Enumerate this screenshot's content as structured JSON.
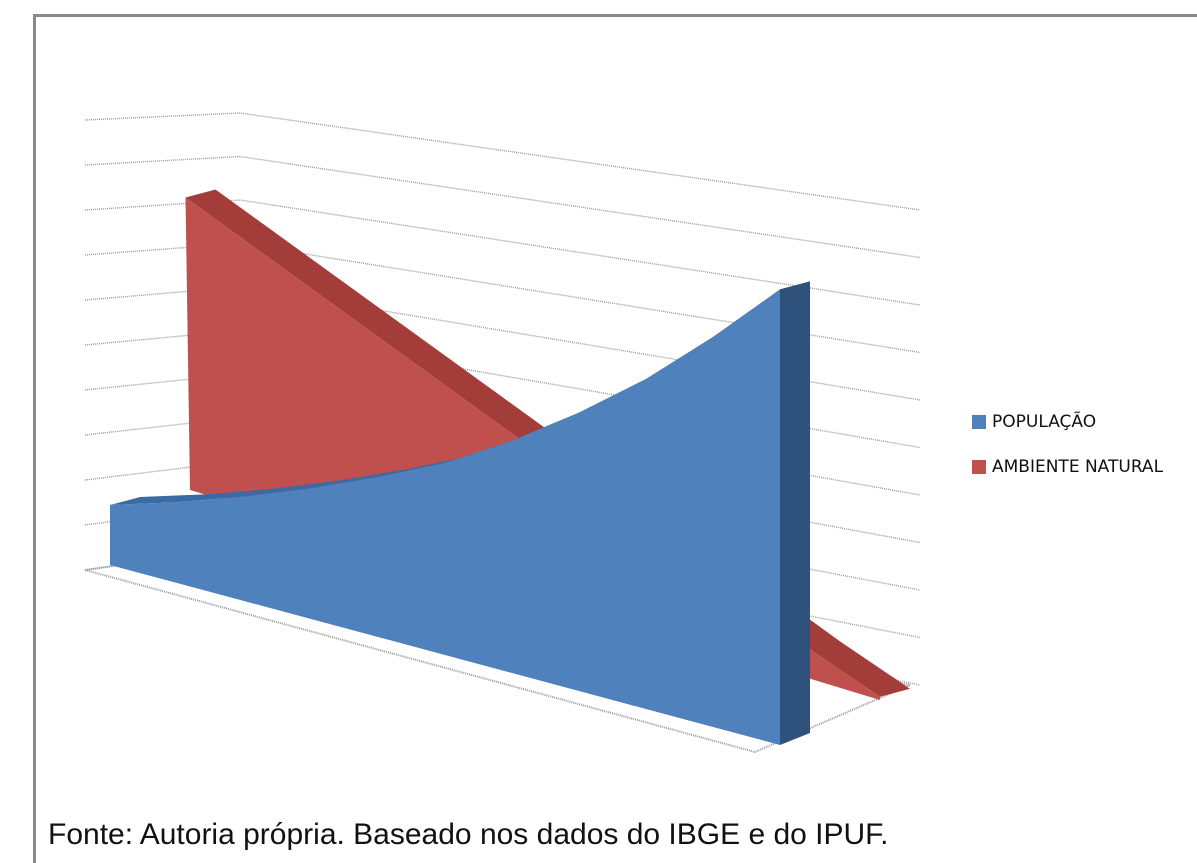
{
  "chart_data": {
    "type": "area",
    "style": "3d",
    "title": "",
    "xlabel": "",
    "ylabel": "",
    "grid": true,
    "legend_position": "right",
    "series": [
      {
        "name": "POPULAÇÃO",
        "color": "#4f81bd",
        "x": [
          0,
          1,
          2,
          3,
          4,
          5,
          6,
          7,
          8,
          9,
          10
        ],
        "values": [
          0.5,
          0.6,
          0.8,
          1.1,
          1.5,
          2.0,
          2.8,
          3.8,
          5.0,
          6.5,
          8.2
        ]
      },
      {
        "name": "AMBIENTE NATURAL",
        "color": "#c0504d",
        "x": [
          0,
          1,
          2,
          3,
          4,
          5,
          6,
          7,
          8,
          9,
          10
        ],
        "values": [
          9.0,
          8.1,
          7.2,
          6.3,
          5.4,
          4.5,
          3.6,
          2.7,
          1.8,
          0.9,
          0.1
        ]
      }
    ],
    "ylim": [
      0,
      10
    ],
    "gridline_count": 10
  },
  "caption": "Fonte: Autoria própria. Baseado nos dados do IBGE e do  IPUF."
}
